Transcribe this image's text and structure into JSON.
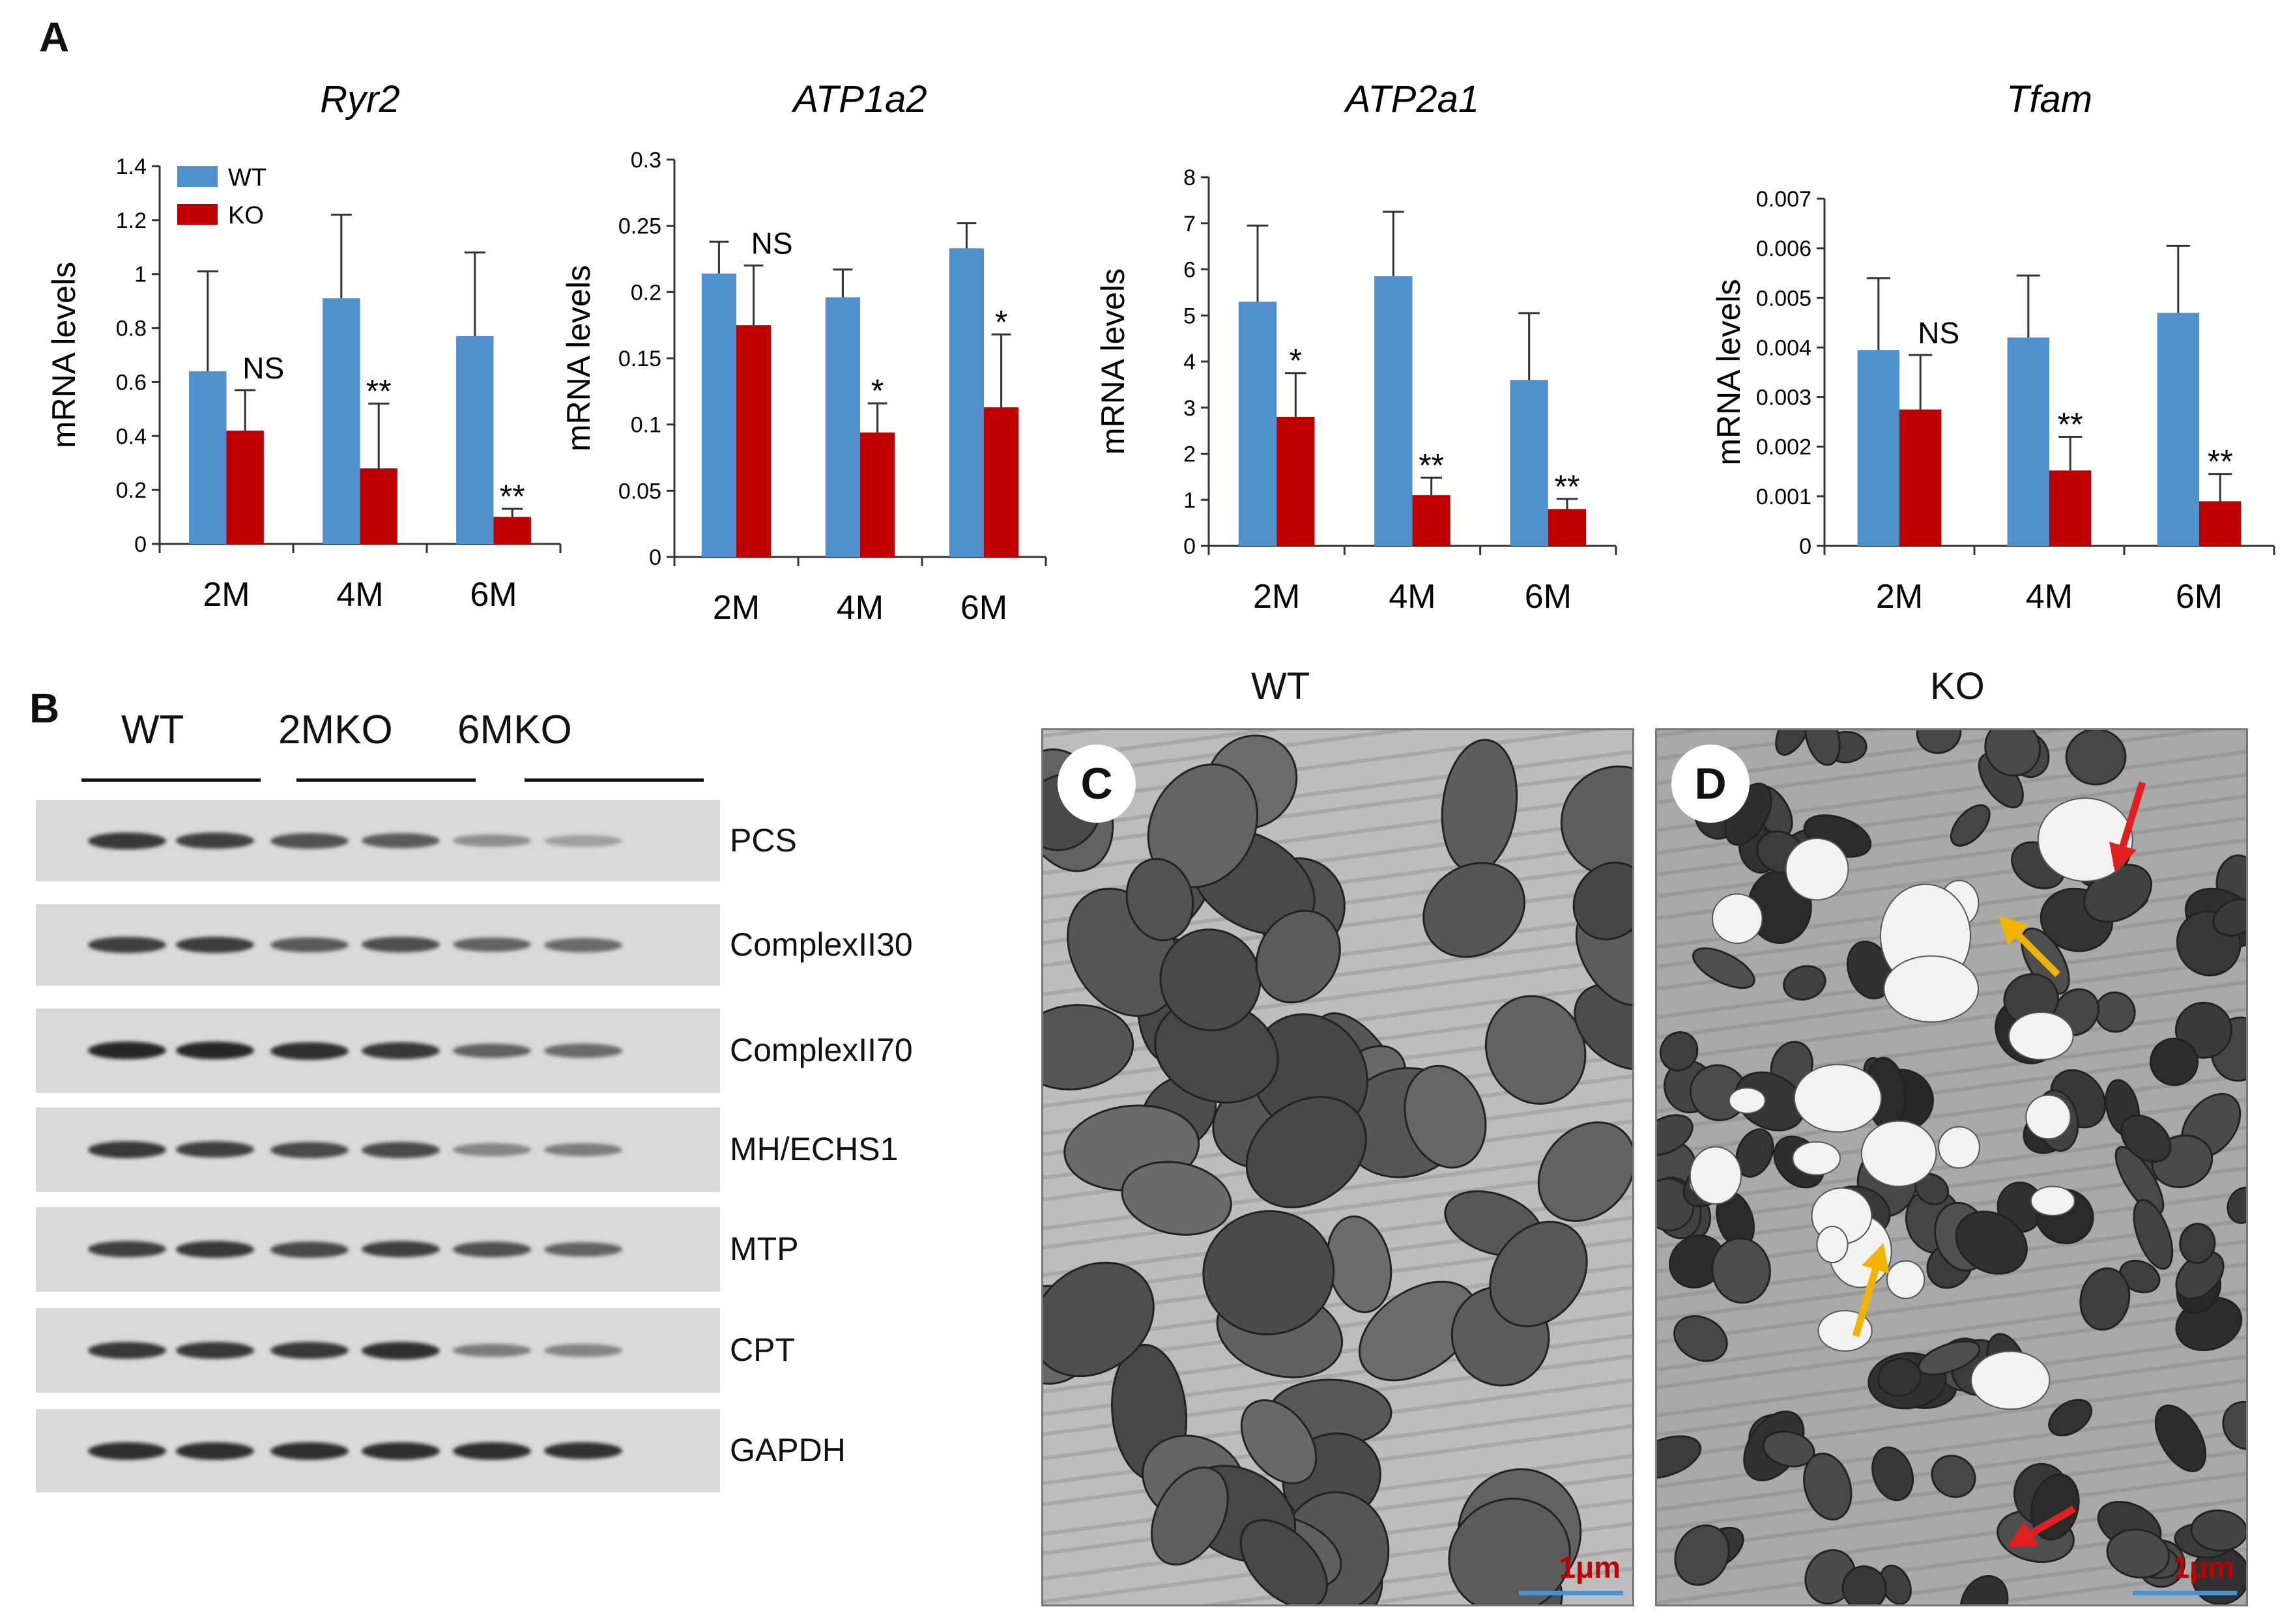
{
  "panel_A": {
    "letter": "A",
    "legend": [
      {
        "label": "WT",
        "color": "#4f90cd"
      },
      {
        "label": "KO",
        "color": "#c00000"
      }
    ],
    "ylabel": "mRNA  levels"
  },
  "chart_data": [
    {
      "type": "bar",
      "title": "Ryr2",
      "ylabel": "mRNA  levels",
      "categories": [
        "2M",
        "4M",
        "6M"
      ],
      "ylim": [
        0,
        1.4
      ],
      "yticks": [
        "0",
        "0.2",
        "0.4",
        "0.6",
        "0.8",
        "1",
        "1.2",
        "1.4"
      ],
      "series": [
        {
          "name": "WT",
          "color": "#4f90cd",
          "values": [
            0.64,
            0.91,
            0.77
          ],
          "errors": [
            0.37,
            0.31,
            0.31
          ]
        },
        {
          "name": "KO",
          "color": "#c00000",
          "values": [
            0.42,
            0.28,
            0.1
          ],
          "errors": [
            0.15,
            0.24,
            0.03
          ]
        }
      ],
      "annotations": [
        "NS",
        "**",
        "**"
      ]
    },
    {
      "type": "bar",
      "title": "ATP1a2",
      "ylabel": "mRNA  levels",
      "categories": [
        "2M",
        "4M",
        "6M"
      ],
      "ylim": [
        0,
        0.3
      ],
      "yticks": [
        "0",
        "0.05",
        "0.1",
        "0.15",
        "0.2",
        "0.25",
        "0.3"
      ],
      "series": [
        {
          "name": "WT",
          "color": "#4f90cd",
          "values": [
            0.214,
            0.196,
            0.233
          ],
          "errors": [
            0.024,
            0.021,
            0.019
          ]
        },
        {
          "name": "KO",
          "color": "#c00000",
          "values": [
            0.175,
            0.094,
            0.113
          ],
          "errors": [
            0.045,
            0.022,
            0.055
          ]
        }
      ],
      "annotations": [
        "NS",
        "*",
        "*"
      ]
    },
    {
      "type": "bar",
      "title": "ATP2a1",
      "ylabel": "mRNA  levels",
      "categories": [
        "2M",
        "4M",
        "6M"
      ],
      "ylim": [
        0,
        8
      ],
      "yticks": [
        "0",
        "1",
        "2",
        "3",
        "4",
        "5",
        "6",
        "7",
        "8"
      ],
      "series": [
        {
          "name": "WT",
          "color": "#4f90cd",
          "values": [
            5.3,
            5.85,
            3.6
          ],
          "errors": [
            1.65,
            1.4,
            1.45
          ]
        },
        {
          "name": "KO",
          "color": "#c00000",
          "values": [
            2.8,
            1.1,
            0.8
          ],
          "errors": [
            0.95,
            0.38,
            0.22
          ]
        }
      ],
      "annotations": [
        "*",
        "**",
        "**"
      ]
    },
    {
      "type": "bar",
      "title": "Tfam",
      "ylabel": "mRNA  levels",
      "categories": [
        "2M",
        "4M",
        "6M"
      ],
      "ylim": [
        0,
        0.007
      ],
      "yticks": [
        "0",
        "0.001",
        "0.002",
        "0.003",
        "0.004",
        "0.005",
        "0.006",
        "0.007"
      ],
      "series": [
        {
          "name": "WT",
          "color": "#4f90cd",
          "values": [
            0.00395,
            0.0042,
            0.0047
          ],
          "errors": [
            0.00145,
            0.00125,
            0.00135
          ]
        },
        {
          "name": "KO",
          "color": "#c00000",
          "values": [
            0.00275,
            0.00152,
            0.0009
          ],
          "errors": [
            0.0011,
            0.00068,
            0.00055
          ]
        }
      ],
      "annotations": [
        "NS",
        "**",
        "**"
      ]
    }
  ],
  "panel_B": {
    "letter": "B",
    "groups": [
      "WT",
      "2MKO",
      "6MKO"
    ],
    "rows": [
      {
        "label": "PCS",
        "intensities": [
          0.85,
          0.8,
          0.7,
          0.65,
          0.35,
          0.25
        ]
      },
      {
        "label": "ComplexII30",
        "intensities": [
          0.8,
          0.82,
          0.65,
          0.72,
          0.6,
          0.55
        ]
      },
      {
        "label": "ComplexII70",
        "intensities": [
          0.95,
          0.95,
          0.9,
          0.85,
          0.6,
          0.55
        ]
      },
      {
        "label": "MH/ECHS1",
        "intensities": [
          0.85,
          0.8,
          0.75,
          0.75,
          0.4,
          0.45
        ]
      },
      {
        "label": "MTP",
        "intensities": [
          0.8,
          0.85,
          0.75,
          0.8,
          0.7,
          0.6
        ]
      },
      {
        "label": "CPT",
        "intensities": [
          0.85,
          0.85,
          0.85,
          0.9,
          0.45,
          0.4
        ]
      },
      {
        "label": "GAPDH",
        "intensities": [
          0.9,
          0.9,
          0.9,
          0.9,
          0.9,
          0.88
        ]
      }
    ]
  },
  "panel_C": {
    "letter": "C",
    "title": "WT",
    "scale": "1μm"
  },
  "panel_D": {
    "letter": "D",
    "title": "KO",
    "scale": "1μm"
  },
  "colors": {
    "wt": "#4f90cd",
    "ko": "#c00000",
    "scale_label": "#c00000",
    "scale_bar": "#4f90cd",
    "red_arrow": "#e02020",
    "yellow_arrow": "#f0b400"
  }
}
